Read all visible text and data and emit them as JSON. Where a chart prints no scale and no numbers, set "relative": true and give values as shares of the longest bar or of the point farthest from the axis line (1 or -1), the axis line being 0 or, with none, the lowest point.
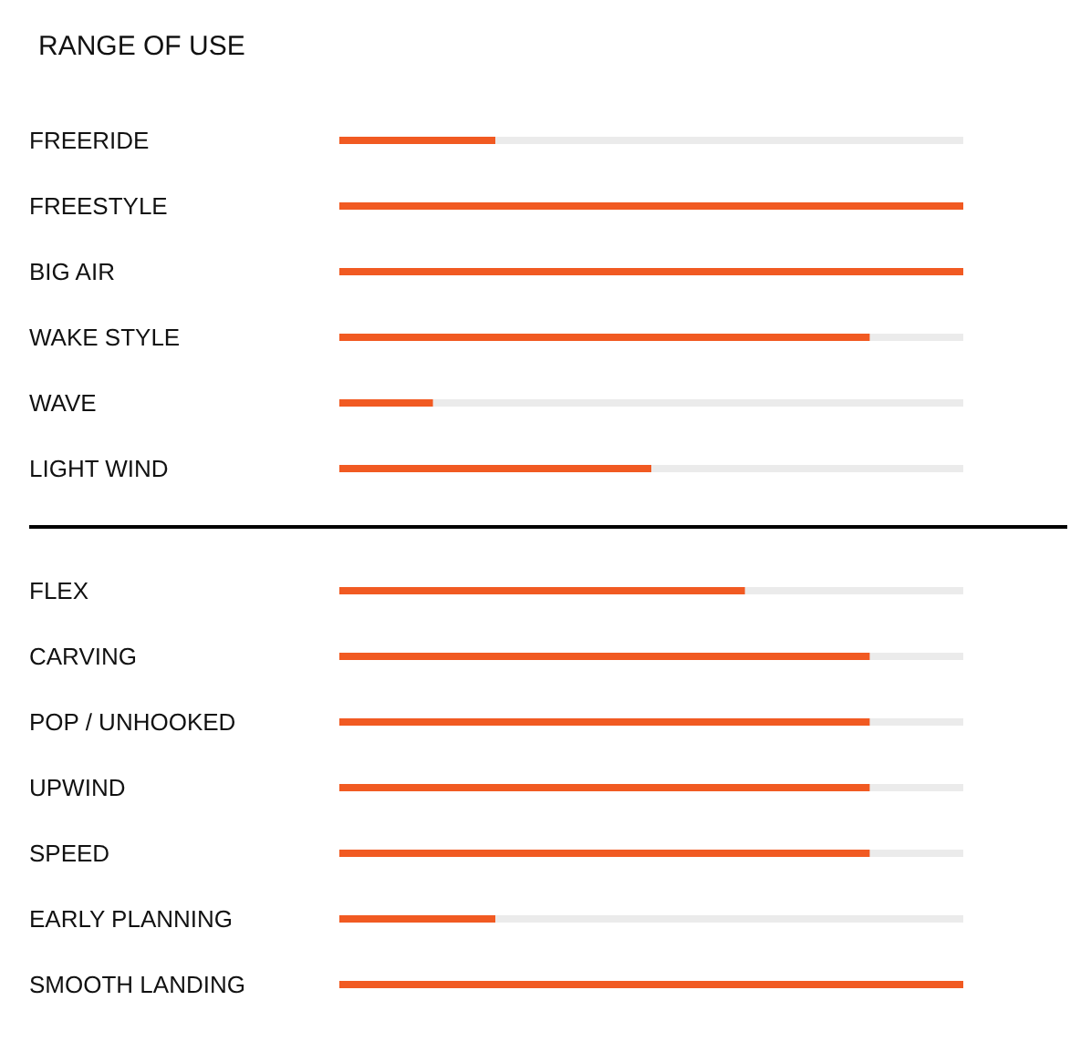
{
  "chart_data": [
    {
      "type": "bar",
      "title": "RANGE OF USE",
      "orientation": "horizontal",
      "relative": true,
      "color": "#f15a22",
      "categories": [
        "FREERIDE",
        "FREESTYLE",
        "BIG AIR",
        "WAKE STYLE",
        "WAVE",
        "LIGHT WIND"
      ],
      "values": [
        0.25,
        1,
        1,
        0.85,
        0.15,
        0.5
      ]
    },
    {
      "type": "bar",
      "orientation": "horizontal",
      "relative": true,
      "color": "#f15a22",
      "categories": [
        "FLEX",
        "CARVING",
        "POP / UNHOOKED",
        "UPWIND",
        "SPEED",
        "EARLY PLANNING",
        "SMOOTH LANDING"
      ],
      "values": [
        0.65,
        0.85,
        0.85,
        0.85,
        0.85,
        0.25,
        1
      ]
    }
  ]
}
